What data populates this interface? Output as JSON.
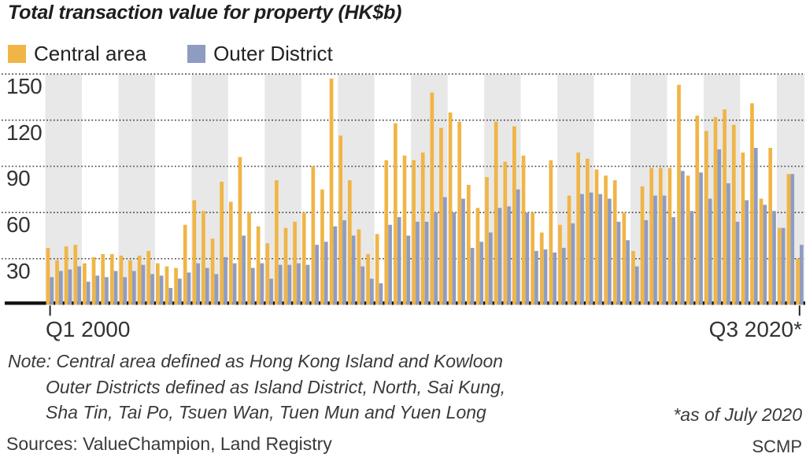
{
  "title": "Total transaction value for property (HK$b)",
  "legend": [
    {
      "label": "Central area"
    },
    {
      "label": "Outer District"
    }
  ],
  "x_axis": {
    "left_label": "Q1 2000",
    "right_label": "Q3 2020*"
  },
  "notes": [
    "Note: Central area defined as Hong Kong Island and Kowloon",
    "Outer Districts defined as Island District, North, Sai Kung,",
    "Sha Tin, Tai Po, Tsuen Wan, Tuen Mun and Yuen Long"
  ],
  "footnote": "*as of July 2020",
  "sources": "Sources: ValueChampion, Land Registry",
  "credit": "SCMP",
  "chart_data": {
    "type": "bar",
    "title": "Total transaction value for property (HK$b)",
    "xlabel": "",
    "ylabel": "HK$b",
    "ylim": [
      0,
      150
    ],
    "yticks": [
      30,
      60,
      90,
      120,
      150
    ],
    "grid": "horizontal-dotted",
    "legend_position": "top",
    "shaded_year_bands": "even years 2000-2020 shaded grey",
    "colors": {
      "central": "#F0B546",
      "outer": "#8F9CC1",
      "year_band": "#E8E8E8",
      "gridline": "#4d4d4d",
      "axis_line": "#111111",
      "text": "#333333"
    },
    "categories": [
      "Q1 2000",
      "Q2 2000",
      "Q3 2000",
      "Q4 2000",
      "Q1 2001",
      "Q2 2001",
      "Q3 2001",
      "Q4 2001",
      "Q1 2002",
      "Q2 2002",
      "Q3 2002",
      "Q4 2002",
      "Q1 2003",
      "Q2 2003",
      "Q3 2003",
      "Q4 2003",
      "Q1 2004",
      "Q2 2004",
      "Q3 2004",
      "Q4 2004",
      "Q1 2005",
      "Q2 2005",
      "Q3 2005",
      "Q4 2005",
      "Q1 2006",
      "Q2 2006",
      "Q3 2006",
      "Q4 2006",
      "Q1 2007",
      "Q2 2007",
      "Q3 2007",
      "Q4 2007",
      "Q1 2008",
      "Q2 2008",
      "Q3 2008",
      "Q4 2008",
      "Q1 2009",
      "Q2 2009",
      "Q3 2009",
      "Q4 2009",
      "Q1 2010",
      "Q2 2010",
      "Q3 2010",
      "Q4 2010",
      "Q1 2011",
      "Q2 2011",
      "Q3 2011",
      "Q4 2011",
      "Q1 2012",
      "Q2 2012",
      "Q3 2012",
      "Q4 2012",
      "Q1 2013",
      "Q2 2013",
      "Q3 2013",
      "Q4 2013",
      "Q1 2014",
      "Q2 2014",
      "Q3 2014",
      "Q4 2014",
      "Q1 2015",
      "Q2 2015",
      "Q3 2015",
      "Q4 2015",
      "Q1 2016",
      "Q2 2016",
      "Q3 2016",
      "Q4 2016",
      "Q1 2017",
      "Q2 2017",
      "Q3 2017",
      "Q4 2017",
      "Q1 2018",
      "Q2 2018",
      "Q3 2018",
      "Q4 2018",
      "Q1 2019",
      "Q2 2019",
      "Q3 2019",
      "Q4 2019",
      "Q1 2020",
      "Q2 2020",
      "Q3 2020"
    ],
    "series": [
      {
        "name": "Central area",
        "color": "#F0B546",
        "values": [
          37,
          29,
          38,
          39,
          27,
          31,
          33,
          33,
          32,
          29,
          32,
          35,
          27,
          25,
          24,
          52,
          68,
          61,
          43,
          80,
          67,
          96,
          60,
          51,
          40,
          81,
          50,
          54,
          60,
          90,
          75,
          147,
          110,
          81,
          49,
          33,
          46,
          94,
          118,
          97,
          94,
          99,
          138,
          115,
          125,
          119,
          78,
          63,
          83,
          119,
          93,
          116,
          97,
          60,
          47,
          94,
          52,
          71,
          99,
          95,
          88,
          84,
          81,
          60,
          35,
          77,
          89,
          89,
          89,
          143,
          84,
          123,
          113,
          122,
          127,
          117,
          99,
          131,
          69,
          102,
          50,
          85,
          30
        ]
      },
      {
        "name": "Outer District",
        "color": "#8F9CC1",
        "values": [
          18,
          22,
          23,
          25,
          15,
          19,
          18,
          22,
          18,
          22,
          26,
          20,
          19,
          11,
          17,
          21,
          27,
          24,
          20,
          31,
          27,
          45,
          24,
          27,
          17,
          26,
          26,
          27,
          26,
          39,
          41,
          51,
          55,
          45,
          25,
          17,
          14,
          52,
          57,
          45,
          54,
          54,
          60,
          70,
          60,
          69,
          37,
          41,
          47,
          63,
          64,
          75,
          60,
          35,
          36,
          34,
          37,
          53,
          72,
          73,
          72,
          69,
          54,
          42,
          25,
          55,
          71,
          71,
          57,
          87,
          61,
          86,
          69,
          101,
          79,
          54,
          68,
          102,
          65,
          61,
          50,
          85,
          39
        ]
      }
    ]
  }
}
